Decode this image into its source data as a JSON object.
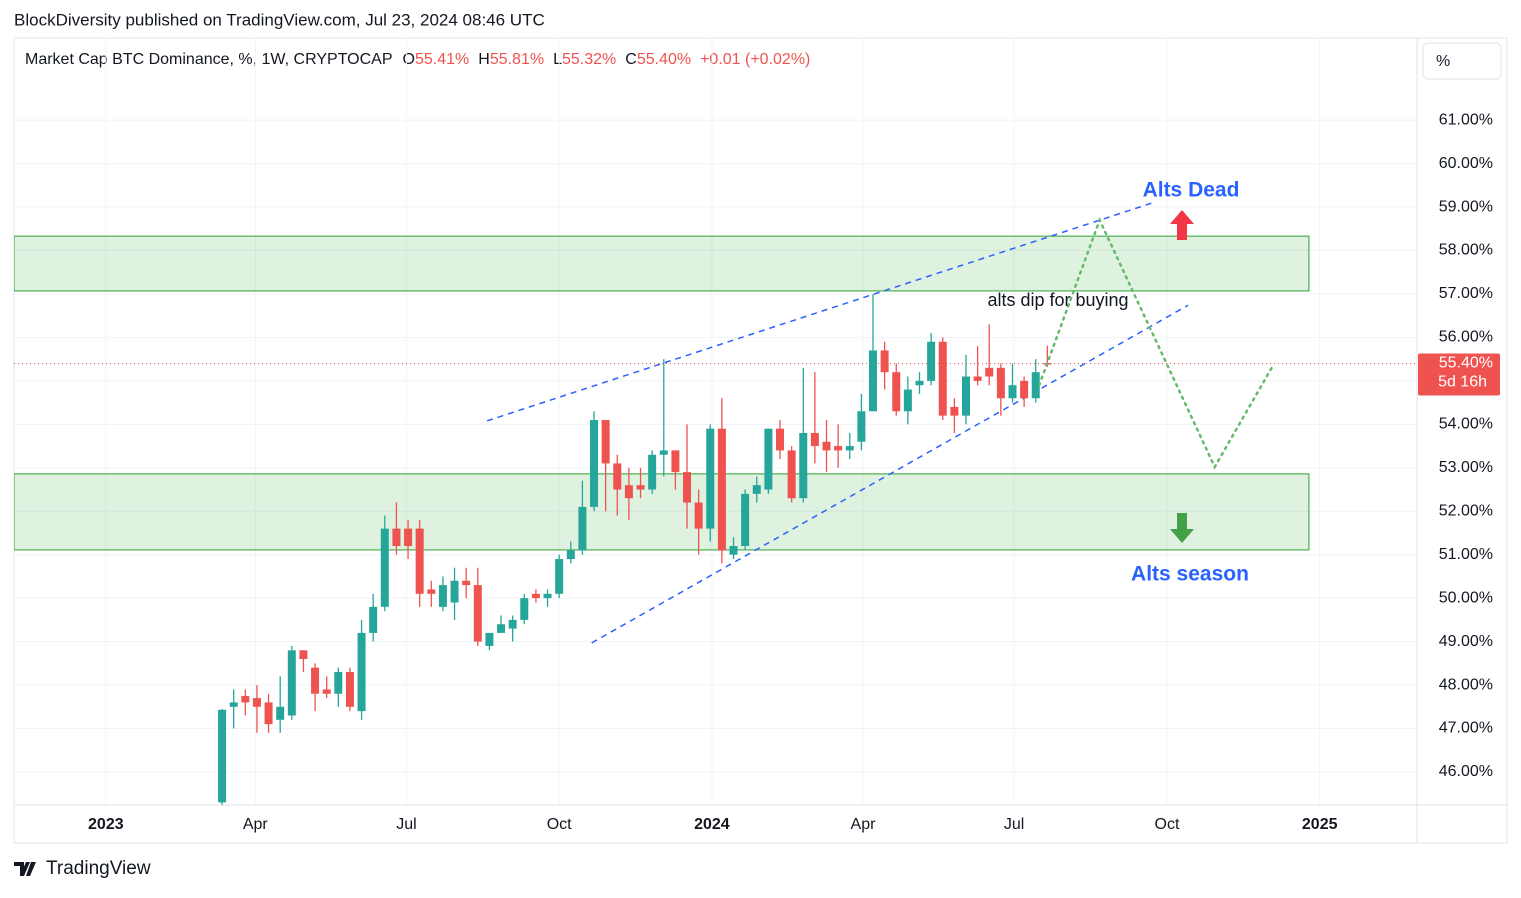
{
  "header": {
    "publisher": "BlockDiversity published on TradingView.com, Jul 23, 2024 08:46 UTC",
    "symbol": "Market Cap BTC Dominance, %, 1W, CRYPTOCAP",
    "ohlc": [
      {
        "key": "O",
        "value": "55.41%"
      },
      {
        "key": "H",
        "value": "55.81%"
      },
      {
        "key": "L",
        "value": "55.32%"
      },
      {
        "key": "C",
        "value": "55.40%"
      }
    ],
    "change": "+0.01 (+0.02%)",
    "unit_button": "%"
  },
  "footer": {
    "brand": "TradingView"
  },
  "chart_data": {
    "type": "candlestick",
    "up_color": "#26a69a",
    "down_color": "#ef5350",
    "xlim": [
      -7.9,
      112.8
    ],
    "xticks": [
      {
        "value": 0,
        "label": "2023"
      },
      {
        "value": 12.86,
        "label": "Apr"
      },
      {
        "value": 25.86,
        "label": "Jul"
      },
      {
        "value": 39,
        "label": "Oct"
      },
      {
        "value": 52.14,
        "label": "2024"
      },
      {
        "value": 65.14,
        "label": "Apr"
      },
      {
        "value": 78.14,
        "label": "Jul"
      },
      {
        "value": 91.29,
        "label": "Oct"
      },
      {
        "value": 104.43,
        "label": "2025"
      }
    ],
    "ylim": [
      45.24,
      62.89
    ],
    "yticks": [
      {
        "value": 46,
        "label": "46.00%"
      },
      {
        "value": 47,
        "label": "47.00%"
      },
      {
        "value": 48,
        "label": "48.00%"
      },
      {
        "value": 49,
        "label": "49.00%"
      },
      {
        "value": 50,
        "label": "50.00%"
      },
      {
        "value": 51,
        "label": "51.00%"
      },
      {
        "value": 52,
        "label": "52.00%"
      },
      {
        "value": 53,
        "label": "53.00%"
      },
      {
        "value": 54,
        "label": "54.00%"
      },
      {
        "value": 55,
        "label": "55.00%"
      },
      {
        "value": 56,
        "label": "56.00%"
      },
      {
        "value": 57,
        "label": "57.00%"
      },
      {
        "value": 58,
        "label": "58.00%"
      },
      {
        "value": 59,
        "label": "59.00%"
      },
      {
        "value": 60,
        "label": "60.00%"
      },
      {
        "value": 61,
        "label": "61.00%"
      }
    ],
    "grid": true,
    "x": [
      10,
      11,
      12,
      13,
      14,
      15,
      16,
      17,
      18,
      19,
      20,
      21,
      22,
      23,
      24,
      25,
      26,
      27,
      28,
      29,
      30,
      31,
      32,
      33,
      34,
      35,
      36,
      37,
      38,
      39,
      40,
      41,
      42,
      43,
      44,
      45,
      46,
      47,
      48,
      49,
      50,
      51,
      52,
      53,
      54,
      55,
      56,
      57,
      58,
      59,
      60,
      61,
      62,
      63,
      64,
      65,
      66,
      67,
      68,
      69,
      70,
      71,
      72,
      73,
      74,
      75,
      76,
      77,
      78,
      79,
      80,
      81
    ],
    "open": [
      45.3,
      47.5,
      47.75,
      47.7,
      47.6,
      47.2,
      47.3,
      48.8,
      48.4,
      47.9,
      47.8,
      48.3,
      47.4,
      49.2,
      49.8,
      51.6,
      51.6,
      51.6,
      50.2,
      49.8,
      49.9,
      50.4,
      50.3,
      48.9,
      49.2,
      49.3,
      49.5,
      50.1,
      50.0,
      50.1,
      50.9,
      51.1,
      52.1,
      54.1,
      53.1,
      52.6,
      52.6,
      52.5,
      53.3,
      53.4,
      52.9,
      52.2,
      51.6,
      53.9,
      51.0,
      51.2,
      52.4,
      52.5,
      53.9,
      53.4,
      52.3,
      53.8,
      53.6,
      53.5,
      53.4,
      53.6,
      54.3,
      55.7,
      55.2,
      54.3,
      54.9,
      55.0,
      55.9,
      54.4,
      54.2,
      55.1,
      55.3,
      55.3,
      54.6,
      55.0,
      54.6,
      55.41
    ],
    "high": [
      47.45,
      47.9,
      47.9,
      48.0,
      47.8,
      48.2,
      48.9,
      48.8,
      48.5,
      48.2,
      48.4,
      48.4,
      49.5,
      50.1,
      51.9,
      52.2,
      51.8,
      51.8,
      50.4,
      50.5,
      50.7,
      50.7,
      50.7,
      49.2,
      49.6,
      49.6,
      50.1,
      50.2,
      50.2,
      51.0,
      51.3,
      52.7,
      54.3,
      54.1,
      53.3,
      53.0,
      53.0,
      53.4,
      55.5,
      53.4,
      54.0,
      52.5,
      54.0,
      54.6,
      51.4,
      52.5,
      52.8,
      53.9,
      54.1,
      53.5,
      55.3,
      55.2,
      54.1,
      54.0,
      53.8,
      54.7,
      57.0,
      55.9,
      55.4,
      55.1,
      55.2,
      56.1,
      56.0,
      54.6,
      55.6,
      55.8,
      56.3,
      55.4,
      55.4,
      55.1,
      55.5,
      55.81
    ],
    "low": [
      45.2,
      47.0,
      47.3,
      46.9,
      46.9,
      46.9,
      47.2,
      48.3,
      47.4,
      47.7,
      47.5,
      47.4,
      47.2,
      49.0,
      49.7,
      51.0,
      50.9,
      49.8,
      49.8,
      49.7,
      49.5,
      50.0,
      48.9,
      48.8,
      49.2,
      49.0,
      49.4,
      49.9,
      49.8,
      50.0,
      50.8,
      51.0,
      52.0,
      52.0,
      51.9,
      51.8,
      52.3,
      52.4,
      52.8,
      52.5,
      51.6,
      51.0,
      51.3,
      50.8,
      50.9,
      51.1,
      52.2,
      52.4,
      53.2,
      52.2,
      52.2,
      53.1,
      52.9,
      53.0,
      53.2,
      53.4,
      54.3,
      54.8,
      54.2,
      54.0,
      54.7,
      54.9,
      54.1,
      53.8,
      54.0,
      54.9,
      54.9,
      54.2,
      54.5,
      54.4,
      54.5,
      55.32
    ],
    "close": [
      47.43,
      47.6,
      47.6,
      47.5,
      47.1,
      47.5,
      48.8,
      48.6,
      47.8,
      47.8,
      48.3,
      47.5,
      49.2,
      49.8,
      51.6,
      51.2,
      51.2,
      50.1,
      50.1,
      50.3,
      50.4,
      50.3,
      49.0,
      49.2,
      49.4,
      49.5,
      50.0,
      50.0,
      50.1,
      50.9,
      51.1,
      52.1,
      54.1,
      53.1,
      52.5,
      52.3,
      52.5,
      53.3,
      53.4,
      52.9,
      52.2,
      51.6,
      53.9,
      51.1,
      51.2,
      52.4,
      52.6,
      53.9,
      53.4,
      52.3,
      53.8,
      53.5,
      53.4,
      53.4,
      53.5,
      54.3,
      55.7,
      55.2,
      54.3,
      54.8,
      55.0,
      55.9,
      54.2,
      54.2,
      55.1,
      55.0,
      55.1,
      54.6,
      54.9,
      54.6,
      55.2,
      55.4
    ],
    "last_price": {
      "value": 55.4,
      "label": "55.40%",
      "countdown": "5d 16h"
    },
    "zones": [
      {
        "x_end": 103.5,
        "low": 57.07,
        "high": 58.33
      },
      {
        "x_end": 103.5,
        "low": 51.11,
        "high": 52.86
      }
    ],
    "trend_lines": [
      {
        "x": [
          32.8,
          90.2
        ],
        "values": [
          54.08,
          59.11
        ]
      },
      {
        "x": [
          41.8,
          93.1
        ],
        "values": [
          48.97,
          56.74
        ]
      }
    ],
    "projection": {
      "x": [
        80.3,
        85.5,
        95.4,
        100.3
      ],
      "values": [
        54.9,
        58.7,
        53.02,
        55.3
      ]
    },
    "annotations": [
      "Alts Dead",
      "alts dip for buying",
      "Alts season"
    ]
  }
}
